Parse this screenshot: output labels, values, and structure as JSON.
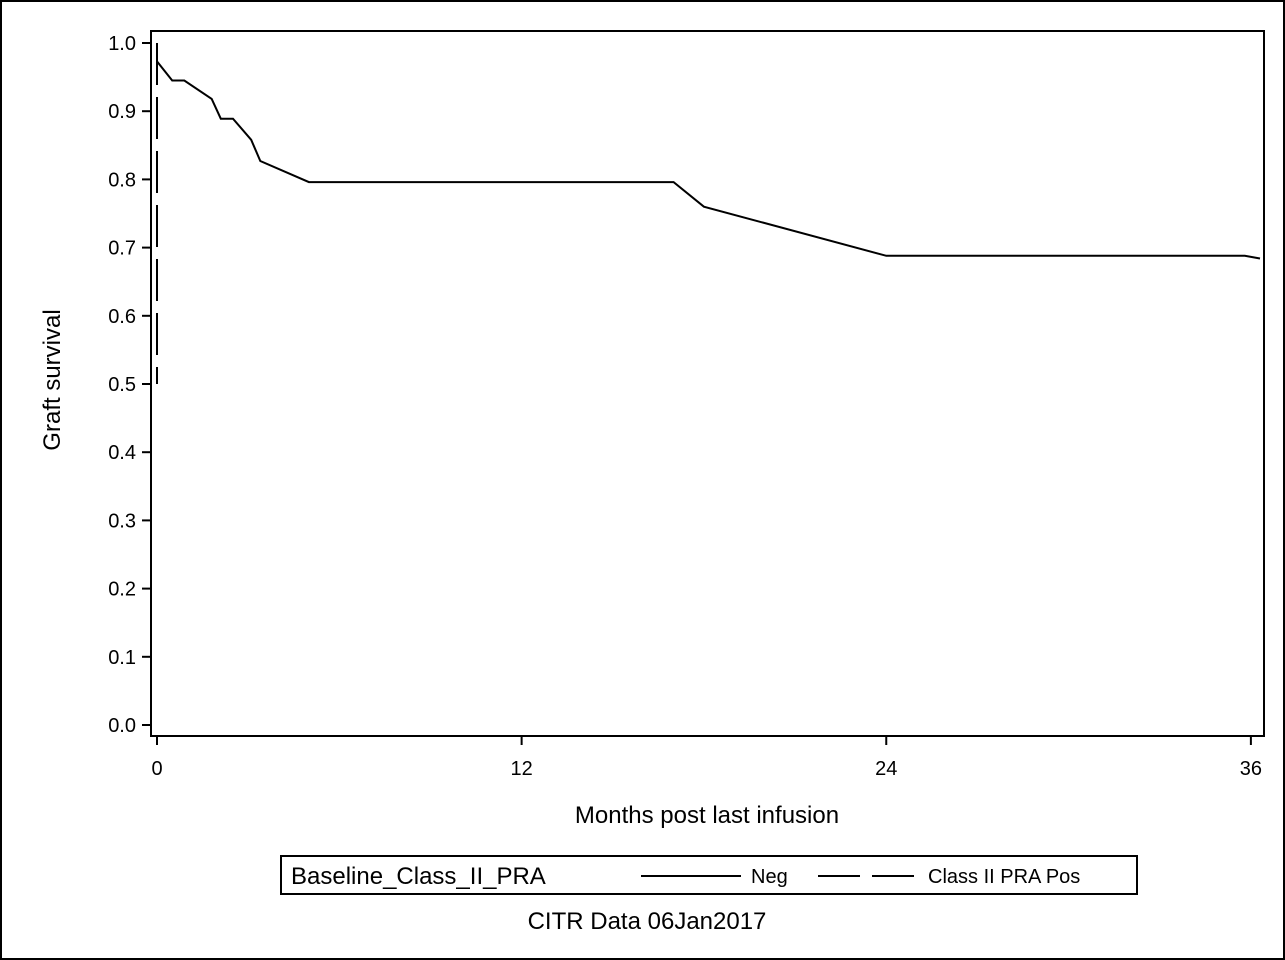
{
  "chart_data": {
    "type": "line",
    "title": "",
    "xlabel": "Months post last infusion",
    "ylabel": "Graft survival",
    "xlim": [
      0,
      36.3
    ],
    "ylim": [
      0,
      1.0
    ],
    "x_ticks": [
      0,
      12,
      24,
      36
    ],
    "y_ticks": [
      0.0,
      0.1,
      0.2,
      0.3,
      0.4,
      0.5,
      0.6,
      0.7,
      0.8,
      0.9,
      1.0
    ],
    "y_tick_labels": [
      "0.0",
      "0.1",
      "0.2",
      "0.3",
      "0.4",
      "0.5",
      "0.6",
      "0.7",
      "0.8",
      "0.9",
      "1.0"
    ],
    "grid": false,
    "legend": {
      "title": "Baseline_Class_II_PRA",
      "placement": "bottom-center"
    },
    "footnote": "CITR Data 06Jan2017",
    "series": [
      {
        "name": "Neg",
        "style": "solid",
        "color": "#000000",
        "points": [
          [
            0,
            1.0
          ],
          [
            0.0,
            0.973
          ],
          [
            0.5,
            0.945
          ],
          [
            0.9,
            0.945
          ],
          [
            1.8,
            0.918
          ],
          [
            2.1,
            0.889
          ],
          [
            2.5,
            0.889
          ],
          [
            3.1,
            0.858
          ],
          [
            3.4,
            0.827
          ],
          [
            5.0,
            0.796
          ],
          [
            17.0,
            0.796
          ],
          [
            18.0,
            0.76
          ],
          [
            24.0,
            0.688
          ],
          [
            35.8,
            0.688
          ],
          [
            36.3,
            0.684
          ]
        ]
      },
      {
        "name": "Class II PRA Pos",
        "style": "dashed",
        "color": "#000000",
        "points": [
          [
            0.0,
            1.0
          ],
          [
            0.0,
            0.5
          ]
        ]
      }
    ]
  }
}
